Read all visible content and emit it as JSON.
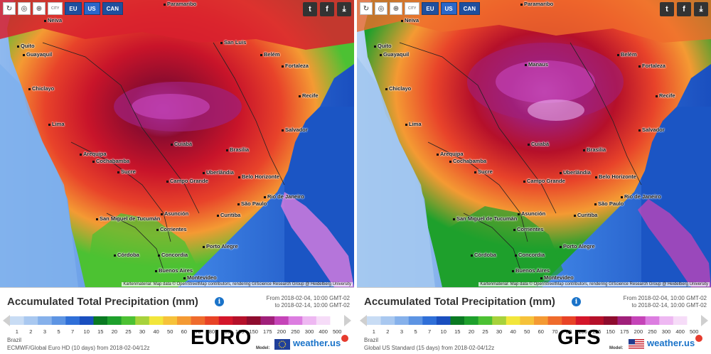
{
  "toolbar": {
    "refresh_icon": "refresh-icon",
    "globe_icon": "globe-icon",
    "zoom_icon": "zoom-icon",
    "city_label": "CITY",
    "regions": [
      "EU",
      "US",
      "CAN"
    ],
    "share_icons": [
      "twitter-icon",
      "facebook-icon",
      "download-icon"
    ]
  },
  "map": {
    "credit": "Kartenmaterial: Map data © OpenStreetMap contributors, rendering GIScience Research Group @ Heidelberg University",
    "cities": [
      "Paramaribo",
      "Neiva",
      "Huila",
      "Quito",
      "Guayaquil",
      "Chiclayo",
      "Lima",
      "Arequipa",
      "Cochabamba",
      "Santa Cruz de la Sierra",
      "Sucre",
      "Cuiabá",
      "Brasília",
      "Belo Horizonte",
      "Campo Grande",
      "Uberlândia",
      "Ribeirão Preto",
      "Rio de Janeiro",
      "São Paulo",
      "Curitiba",
      "Asunción",
      "San Miguel de Tucumán",
      "Corrientes",
      "Posadas",
      "Florianópolis",
      "Criciúma",
      "Porto Alegre",
      "La Rioja",
      "Córdoba",
      "Santa Fe",
      "Rosario",
      "Concordia",
      "Pelotas",
      "Buenos Aires",
      "Montevideo",
      "Santiago",
      "San Luis",
      "Manaus",
      "Santarém",
      "Belém",
      "São Luís",
      "Fortaleza",
      "Teresina",
      "Natal",
      "Recife",
      "Maceió",
      "Aracaju",
      "Salvador",
      "Serra",
      "Macapá"
    ]
  },
  "panels": [
    {
      "legend_title": "Accumulated Total Precipitation (mm)",
      "period_from": "From 2018-02-04, 10:00 GMT-02",
      "period_to": "to 2018-02-14, 10:00 GMT-02",
      "region": "Brazil",
      "model_desc": "ECMWF/Global Euro HD (10 days)  from 2018-02-04/12z",
      "big_label": "EURO",
      "model_label": "Model:",
      "brand": "weather.us"
    },
    {
      "legend_title": "Accumulated Total Precipitation (mm)",
      "period_from": "From 2018-02-04, 10:00 GMT-02",
      "period_to": "to 2018-02-14, 10:00 GMT-02",
      "region": "Brazil",
      "model_desc": "Global US Standard  (15 days)  from 2018-02-04/12z",
      "big_label": "GFS",
      "model_label": "Model:",
      "brand": "weather.us"
    }
  ],
  "scale": {
    "labels": [
      "1",
      "2",
      "3",
      "5",
      "7",
      "10",
      "15",
      "20",
      "25",
      "30",
      "40",
      "50",
      "60",
      "70",
      "80",
      "100",
      "125",
      "150",
      "175",
      "200",
      "250",
      "300",
      "400",
      "500"
    ],
    "colors": [
      "#c8dcf4",
      "#a9c8f0",
      "#86b1eb",
      "#5d94e3",
      "#2f6fd8",
      "#1a4fbf",
      "#0a7a22",
      "#1ea02c",
      "#4cc133",
      "#a7d23b",
      "#f2e63b",
      "#f6c23a",
      "#f49a33",
      "#ef6b2c",
      "#e84326",
      "#d4162a",
      "#b5102a",
      "#8e0c2e",
      "#a0207a",
      "#c544b8",
      "#dc7de0",
      "#eeb8f2",
      "#f6dcf8",
      "#ffffff"
    ]
  },
  "colors": {
    "ocean": "#1b55c4",
    "land_wet": "#d8202e",
    "land_very_wet": "#9c0e2a",
    "extreme": "#b04cd8",
    "dry": "#3fa6e0",
    "brand_blue": "#1a73c9",
    "brand_red": "#e63b2e"
  }
}
